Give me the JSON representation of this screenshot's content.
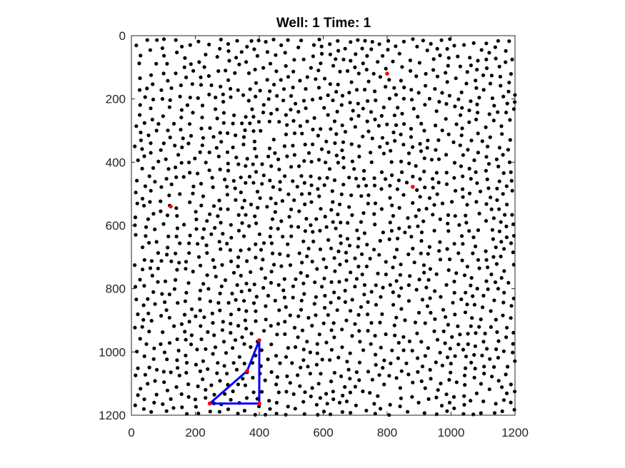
{
  "chart_data": {
    "type": "scatter",
    "title": "Well: 1 Time: 1",
    "xlabel": "",
    "ylabel": "",
    "xlim": [
      0,
      1200
    ],
    "ylim": [
      0,
      1200
    ],
    "y_reversed": true,
    "grid": false,
    "x_ticks": [
      0,
      200,
      400,
      600,
      800,
      1000,
      1200
    ],
    "y_ticks": [
      0,
      200,
      400,
      600,
      800,
      1000,
      1200
    ],
    "x_tick_labels": [
      "0",
      "200",
      "400",
      "600",
      "800",
      "1000",
      "1200"
    ],
    "y_tick_labels": [
      "0",
      "200",
      "400",
      "600",
      "800",
      "1000",
      "1200"
    ],
    "colors": {
      "points": "#000000",
      "highlight": "#ff0000",
      "path": "#0000ff"
    },
    "background_points": {
      "count": 1700,
      "note_extent": [
        10,
        1200
      ]
    },
    "highlight_points": [
      {
        "x": 800,
        "y": 120
      },
      {
        "x": 880,
        "y": 478
      },
      {
        "x": 123,
        "y": 540
      },
      {
        "x": 400,
        "y": 963
      },
      {
        "x": 362,
        "y": 1060
      },
      {
        "x": 245,
        "y": 1163
      },
      {
        "x": 400,
        "y": 1163
      }
    ],
    "path": [
      {
        "x": 400,
        "y": 963
      },
      {
        "x": 362,
        "y": 1060
      },
      {
        "x": 245,
        "y": 1163
      },
      {
        "x": 400,
        "y": 1163
      },
      {
        "x": 400,
        "y": 963
      }
    ]
  }
}
